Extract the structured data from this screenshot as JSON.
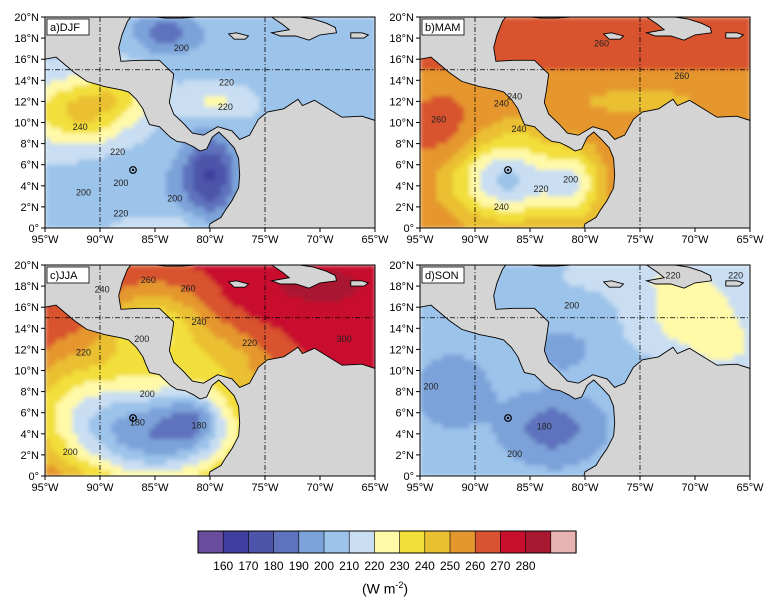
{
  "colors": {
    "bins": [
      "#6a4c9c",
      "#3f3f9f",
      "#4d55aa",
      "#5f72bd",
      "#7ca3d9",
      "#9cc3ea",
      "#c9def2",
      "#fff9a8",
      "#f2df3a",
      "#eac033",
      "#e5972f",
      "#d8532f",
      "#c8102e",
      "#a81830",
      "#e8b3b2"
    ],
    "land": "#d4d4d4",
    "coast": "#000000",
    "guide": "#000000"
  },
  "x_ticks": [
    "95°W",
    "90°W",
    "85°W",
    "80°W",
    "75°W",
    "70°W",
    "65°W"
  ],
  "y_ticks": [
    "0°",
    "2°N",
    "4°N",
    "6°N",
    "8°N",
    "10°N",
    "12°N",
    "14°N",
    "16°N",
    "18°N",
    "20°N"
  ],
  "marker": {
    "lon": -87,
    "lat": 5.5,
    "icon": "circle-dot-icon"
  },
  "guides": {
    "lon": [
      -90,
      -75
    ],
    "lat": 15
  },
  "panels": [
    {
      "label": "a)DJF",
      "contour_labels": [
        {
          "text": "200",
          "lon": -82.6,
          "lat": 16.8
        },
        {
          "text": "220",
          "lon": -78.5,
          "lat": 13.5
        },
        {
          "text": "220",
          "lon": -78.6,
          "lat": 11.2
        },
        {
          "text": "240",
          "lon": -91.8,
          "lat": 9.3
        },
        {
          "text": "220",
          "lon": -88.4,
          "lat": 6.9
        },
        {
          "text": "200",
          "lon": -88.1,
          "lat": 4.0
        },
        {
          "text": "200",
          "lon": -91.5,
          "lat": 3.1
        },
        {
          "text": "200",
          "lon": -83.2,
          "lat": 2.5
        },
        {
          "text": "220",
          "lon": -88.1,
          "lat": 1.1
        }
      ]
    },
    {
      "label": "b)MAM",
      "contour_labels": [
        {
          "text": "260",
          "lon": -78.5,
          "lat": 17.2
        },
        {
          "text": "260",
          "lon": -71.2,
          "lat": 14.1
        },
        {
          "text": "260",
          "lon": -93.3,
          "lat": 10.0
        },
        {
          "text": "240",
          "lon": -86.4,
          "lat": 12.2
        },
        {
          "text": "240",
          "lon": -87.6,
          "lat": 11.5
        },
        {
          "text": "240",
          "lon": -86.0,
          "lat": 9.1
        },
        {
          "text": "220",
          "lon": -84.0,
          "lat": 3.4
        },
        {
          "text": "200",
          "lon": -81.3,
          "lat": 4.3
        },
        {
          "text": "240",
          "lon": -87.6,
          "lat": 1.7
        }
      ]
    },
    {
      "label": "c)JJA",
      "contour_labels": [
        {
          "text": "240",
          "lon": -89.8,
          "lat": 17.4
        },
        {
          "text": "260",
          "lon": -85.6,
          "lat": 18.3
        },
        {
          "text": "260",
          "lon": -82.0,
          "lat": 17.5
        },
        {
          "text": "240",
          "lon": -81.0,
          "lat": 14.3
        },
        {
          "text": "220",
          "lon": -91.5,
          "lat": 11.4
        },
        {
          "text": "200",
          "lon": -86.2,
          "lat": 12.7
        },
        {
          "text": "220",
          "lon": -76.4,
          "lat": 12.3
        },
        {
          "text": "200",
          "lon": -85.7,
          "lat": 7.5
        },
        {
          "text": "180",
          "lon": -86.6,
          "lat": 4.8
        },
        {
          "text": "180",
          "lon": -81.0,
          "lat": 4.5
        },
        {
          "text": "200",
          "lon": -92.7,
          "lat": 2.0
        },
        {
          "text": "300",
          "lon": -67.8,
          "lat": 12.7
        }
      ]
    },
    {
      "label": "d)SON",
      "contour_labels": [
        {
          "text": "220",
          "lon": -72.0,
          "lat": 18.7
        },
        {
          "text": "220",
          "lon": -66.3,
          "lat": 18.7
        },
        {
          "text": "200",
          "lon": -81.2,
          "lat": 15.9
        },
        {
          "text": "200",
          "lon": -94.0,
          "lat": 8.2
        },
        {
          "text": "180",
          "lon": -83.7,
          "lat": 4.4
        },
        {
          "text": "200",
          "lon": -86.4,
          "lat": 1.8
        }
      ]
    }
  ],
  "colorbar": {
    "ticks": [
      "160",
      "170",
      "180",
      "190",
      "200",
      "210",
      "220",
      "230",
      "240",
      "250",
      "260",
      "270",
      "280"
    ],
    "units_main": "(W m",
    "units_sup": "-2",
    "units_close": ")"
  }
}
